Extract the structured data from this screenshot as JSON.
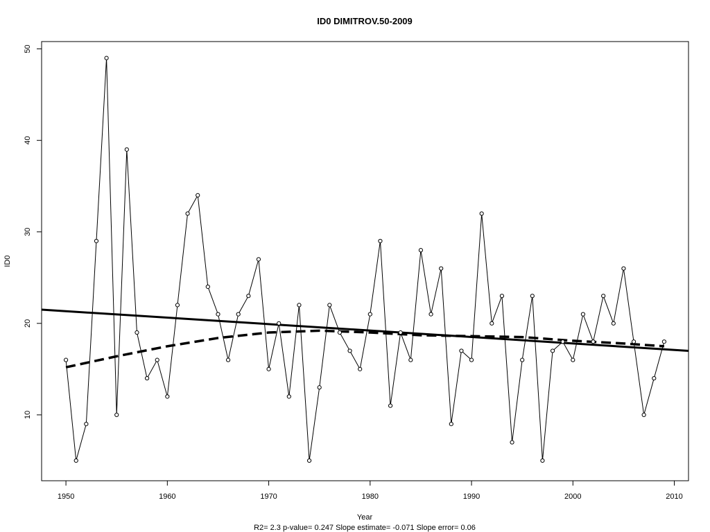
{
  "chart_data": {
    "type": "line",
    "title": "ID0    DIMITROV.50-2009",
    "xlabel": "Year",
    "ylabel": "ID0",
    "footer": "R2= 2.3  p-value= 0.247  Slope estimate= -0.071  Slope error= 0.06",
    "xlim": [
      1947.6,
      2011.4
    ],
    "ylim": [
      2.8,
      50.8
    ],
    "x_ticks": [
      1950,
      1960,
      1970,
      1980,
      1990,
      2000,
      2010
    ],
    "y_ticks": [
      10,
      20,
      30,
      40,
      50
    ],
    "grid": false,
    "series": [
      {
        "style": "points-and-line",
        "x": [
          1950,
          1951,
          1952,
          1953,
          1954,
          1955,
          1956,
          1957,
          1958,
          1959,
          1960,
          1961,
          1962,
          1963,
          1964,
          1965,
          1966,
          1967,
          1968,
          1969,
          1970,
          1971,
          1972,
          1973,
          1974,
          1975,
          1976,
          1977,
          1978,
          1979,
          1980,
          1981,
          1982,
          1983,
          1984,
          1985,
          1986,
          1987,
          1988,
          1989,
          1990,
          1991,
          1992,
          1993,
          1994,
          1995,
          1996,
          1997,
          1998,
          1999,
          2000,
          2001,
          2002,
          2003,
          2004,
          2005,
          2006,
          2007,
          2008,
          2009
        ],
        "y": [
          16,
          5,
          9,
          29,
          49,
          10,
          39,
          19,
          14,
          16,
          12,
          22,
          32,
          34,
          24,
          21,
          16,
          21,
          23,
          27,
          15,
          20,
          12,
          22,
          5,
          13,
          22,
          19,
          17,
          15,
          21,
          29,
          11,
          19,
          16,
          28,
          21,
          26,
          9,
          17,
          16,
          32,
          20,
          23,
          7,
          16,
          23,
          5,
          17,
          18,
          16,
          21,
          18,
          23,
          20,
          26,
          18,
          10,
          14,
          18
        ]
      },
      {
        "style": "solid-thick",
        "x": [
          1947.6,
          2011.4
        ],
        "y": [
          21.5,
          17.0
        ]
      },
      {
        "style": "dashed-thick",
        "x": [
          1950,
          1955,
          1960,
          1965,
          1970,
          1975,
          1980,
          1985,
          1990,
          1995,
          2000,
          2005,
          2009
        ],
        "y": [
          15.2,
          16.4,
          17.5,
          18.4,
          19.0,
          19.2,
          19.0,
          18.7,
          18.6,
          18.5,
          18.1,
          17.8,
          17.5
        ]
      }
    ]
  }
}
